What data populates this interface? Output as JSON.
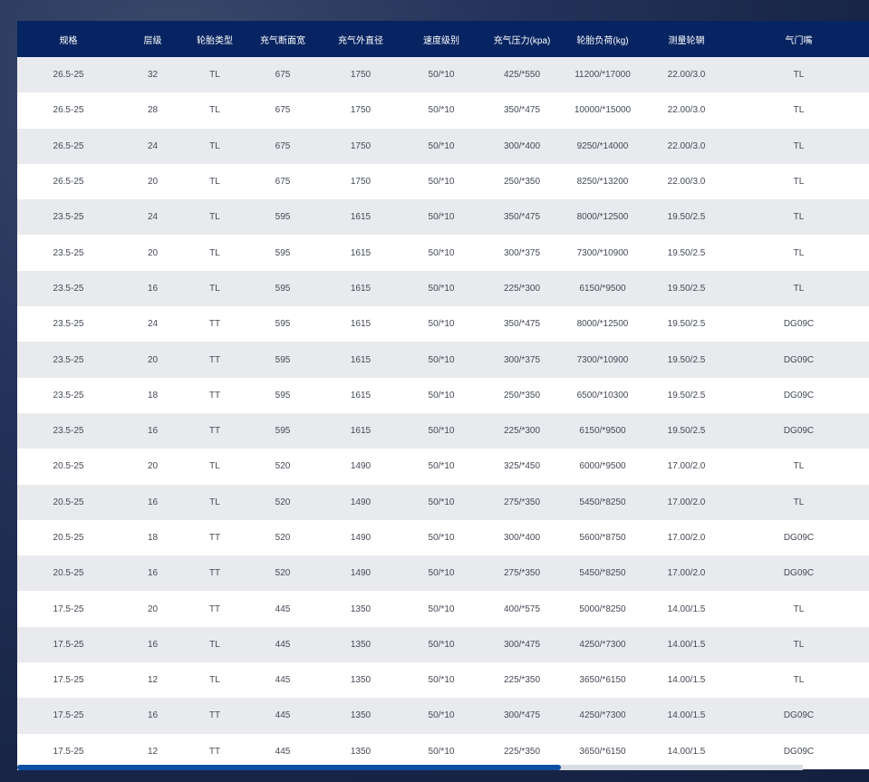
{
  "table": {
    "headers": [
      "规格",
      "层级",
      "轮胎类型",
      "充气断面宽",
      "充气外直径",
      "速度级别",
      "充气压力(kpa)",
      "轮胎负荷(kg)",
      "测量轮辋",
      "气门嘴"
    ],
    "rows": [
      [
        "26.5-25",
        "32",
        "TL",
        "675",
        "1750",
        "50/*10",
        "425/*550",
        "11200/*17000",
        "22.00/3.0",
        "TL"
      ],
      [
        "26.5-25",
        "28",
        "TL",
        "675",
        "1750",
        "50/*10",
        "350/*475",
        "10000/*15000",
        "22.00/3.0",
        "TL"
      ],
      [
        "26.5-25",
        "24",
        "TL",
        "675",
        "1750",
        "50/*10",
        "300/*400",
        "9250/*14000",
        "22.00/3.0",
        "TL"
      ],
      [
        "26.5-25",
        "20",
        "TL",
        "675",
        "1750",
        "50/*10",
        "250/*350",
        "8250/*13200",
        "22.00/3.0",
        "TL"
      ],
      [
        "23.5-25",
        "24",
        "TL",
        "595",
        "1615",
        "50/*10",
        "350/*475",
        "8000/*12500",
        "19.50/2.5",
        "TL"
      ],
      [
        "23.5-25",
        "20",
        "TL",
        "595",
        "1615",
        "50/*10",
        "300/*375",
        "7300/*10900",
        "19.50/2.5",
        "TL"
      ],
      [
        "23.5-25",
        "16",
        "TL",
        "595",
        "1615",
        "50/*10",
        "225/*300",
        "6150/*9500",
        "19.50/2.5",
        "TL"
      ],
      [
        "23.5-25",
        "24",
        "TT",
        "595",
        "1615",
        "50/*10",
        "350/*475",
        "8000/*12500",
        "19.50/2.5",
        "DG09C"
      ],
      [
        "23.5-25",
        "20",
        "TT",
        "595",
        "1615",
        "50/*10",
        "300/*375",
        "7300/*10900",
        "19.50/2.5",
        "DG09C"
      ],
      [
        "23.5-25",
        "18",
        "TT",
        "595",
        "1615",
        "50/*10",
        "250/*350",
        "6500/*10300",
        "19.50/2.5",
        "DG09C"
      ],
      [
        "23.5-25",
        "16",
        "TT",
        "595",
        "1615",
        "50/*10",
        "225/*300",
        "6150/*9500",
        "19.50/2.5",
        "DG09C"
      ],
      [
        "20.5-25",
        "20",
        "TL",
        "520",
        "1490",
        "50/*10",
        "325/*450",
        "6000/*9500",
        "17.00/2.0",
        "TL"
      ],
      [
        "20.5-25",
        "16",
        "TL",
        "520",
        "1490",
        "50/*10",
        "275/*350",
        "5450/*8250",
        "17.00/2.0",
        "TL"
      ],
      [
        "20.5-25",
        "18",
        "TT",
        "520",
        "1490",
        "50/*10",
        "300/*400",
        "5600/*8750",
        "17.00/2.0",
        "DG09C"
      ],
      [
        "20.5-25",
        "16",
        "TT",
        "520",
        "1490",
        "50/*10",
        "275/*350",
        "5450/*8250",
        "17.00/2.0",
        "DG09C"
      ],
      [
        "17.5-25",
        "20",
        "TT",
        "445",
        "1350",
        "50/*10",
        "400/*575",
        "5000/*8250",
        "14.00/1.5",
        "TL"
      ],
      [
        "17.5-25",
        "16",
        "TL",
        "445",
        "1350",
        "50/*10",
        "300/*475",
        "4250/*7300",
        "14.00/1.5",
        "TL"
      ],
      [
        "17.5-25",
        "12",
        "TL",
        "445",
        "1350",
        "50/*10",
        "225/*350",
        "3650/*6150",
        "14.00/1.5",
        "TL"
      ],
      [
        "17.5-25",
        "16",
        "TT",
        "445",
        "1350",
        "50/*10",
        "300/*475",
        "4250/*7300",
        "14.00/1.5",
        "DG09C"
      ],
      [
        "17.5-25",
        "12",
        "TT",
        "445",
        "1350",
        "50/*10",
        "225/*350",
        "3650/*6150",
        "14.00/1.5",
        "DG09C"
      ]
    ]
  },
  "colors": {
    "header_bg": "#062461",
    "row_alt": "#e9eaee",
    "scroll_thumb": "#0b4ea2"
  }
}
